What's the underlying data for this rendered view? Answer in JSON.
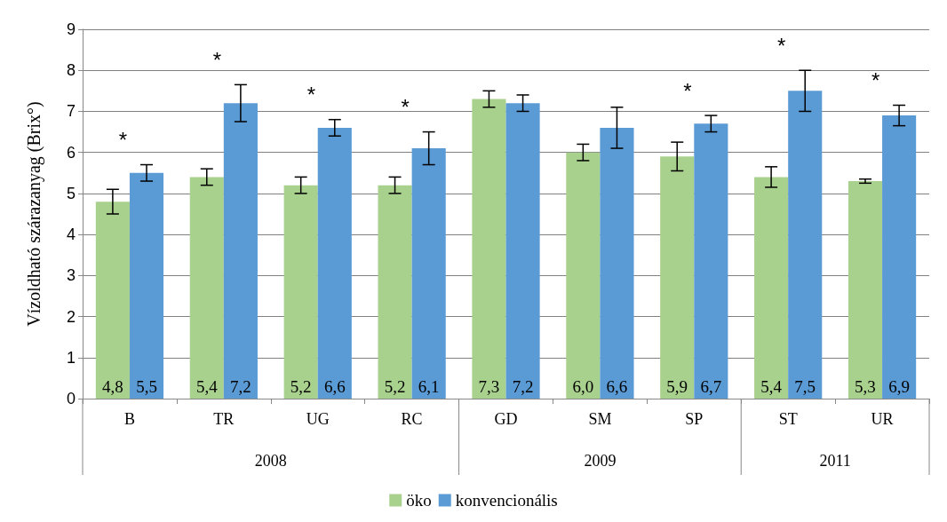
{
  "chart_data": {
    "type": "bar",
    "ylabel": "Vízoldható szárazanyag (Brix°)",
    "categories": [
      "B",
      "TR",
      "UG",
      "RC",
      "GD",
      "SM",
      "SP",
      "ST",
      "UR"
    ],
    "series": [
      {
        "name": "öko",
        "color": "#a9d18e",
        "values": [
          4.8,
          5.4,
          5.2,
          5.2,
          7.3,
          6.0,
          5.9,
          5.4,
          5.3
        ],
        "errors": [
          0.3,
          0.2,
          0.2,
          0.2,
          0.2,
          0.2,
          0.35,
          0.25,
          0.05
        ],
        "value_labels": [
          "4,8",
          "5,4",
          "5,2",
          "5,2",
          "7,3",
          "6,0",
          "5,9",
          "5,4",
          "5,3"
        ]
      },
      {
        "name": "konvencionális",
        "color": "#5b9bd5",
        "values": [
          5.5,
          7.2,
          6.6,
          6.1,
          7.2,
          6.6,
          6.7,
          7.5,
          6.9
        ],
        "errors": [
          0.2,
          0.45,
          0.2,
          0.4,
          0.2,
          0.5,
          0.2,
          0.5,
          0.25
        ],
        "value_labels": [
          "5,5",
          "7,2",
          "6,6",
          "6,1",
          "7,2",
          "6,6",
          "6,7",
          "7,5",
          "6,9"
        ]
      }
    ],
    "annotations": [
      "*",
      "*",
      "*",
      "*",
      "*",
      "*",
      "*",
      "2008",
      "2009",
      "2011"
    ],
    "ylim": [
      0,
      9
    ],
    "yticks": [
      0,
      1,
      2,
      3,
      4,
      5,
      6,
      7,
      8,
      9
    ],
    "grid": "y",
    "legend": "bottom"
  }
}
